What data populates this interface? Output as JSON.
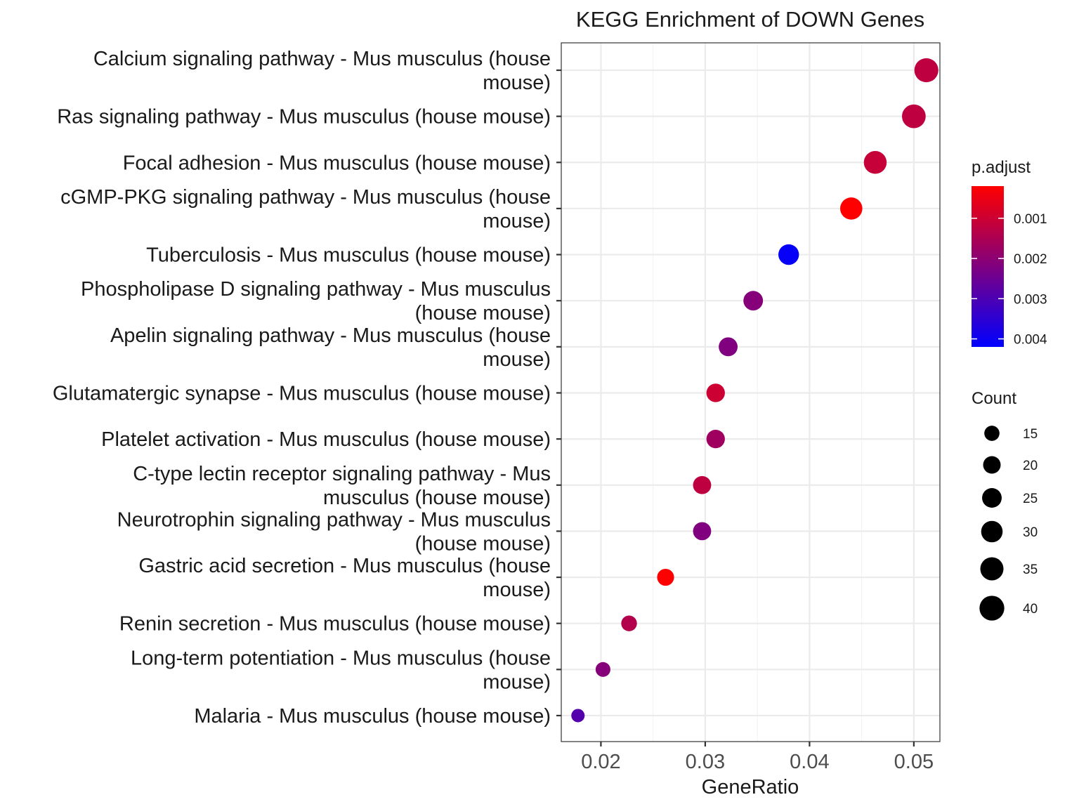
{
  "chart_data": {
    "type": "scatter",
    "title": "KEGG Enrichment of DOWN Genes",
    "xlabel": "GeneRatio",
    "ylabel": "",
    "xlim": [
      0.0162,
      0.0525
    ],
    "x_ticks": [
      0.02,
      0.03,
      0.04,
      0.05
    ],
    "x_tick_labels": [
      "0.02",
      "0.03",
      "0.04",
      "0.05"
    ],
    "grid": true,
    "categories": [
      [
        "Calcium signaling pathway - Mus musculus (house",
        "mouse)"
      ],
      [
        "Ras signaling pathway - Mus musculus (house mouse)"
      ],
      [
        "Focal adhesion - Mus musculus (house mouse)"
      ],
      [
        "cGMP-PKG signaling pathway - Mus musculus (house",
        "mouse)"
      ],
      [
        "Tuberculosis - Mus musculus (house mouse)"
      ],
      [
        "Phospholipase D signaling pathway - Mus musculus",
        "(house mouse)"
      ],
      [
        "Apelin signaling pathway - Mus musculus (house",
        "mouse)"
      ],
      [
        "Glutamatergic synapse - Mus musculus (house mouse)"
      ],
      [
        "Platelet activation - Mus musculus (house mouse)"
      ],
      [
        "C-type lectin receptor signaling pathway - Mus",
        "musculus (house mouse)"
      ],
      [
        "Neurotrophin signaling pathway - Mus musculus",
        "(house mouse)"
      ],
      [
        "Gastric acid secretion - Mus musculus (house",
        "mouse)"
      ],
      [
        "Renin secretion - Mus musculus (house mouse)"
      ],
      [
        "Long-term potentiation - Mus musculus (house",
        "mouse)"
      ],
      [
        "Malaria - Mus musculus (house mouse)"
      ]
    ],
    "points": [
      {
        "gene_ratio": 0.0512,
        "count": 42,
        "p_adjust": 0.0012
      },
      {
        "gene_ratio": 0.05,
        "count": 41,
        "p_adjust": 0.0012
      },
      {
        "gene_ratio": 0.0463,
        "count": 38,
        "p_adjust": 0.0011
      },
      {
        "gene_ratio": 0.044,
        "count": 36,
        "p_adjust": 0.0002
      },
      {
        "gene_ratio": 0.038,
        "count": 31,
        "p_adjust": 0.0041
      },
      {
        "gene_ratio": 0.0346,
        "count": 28,
        "p_adjust": 0.0021
      },
      {
        "gene_ratio": 0.0322,
        "count": 26,
        "p_adjust": 0.0022
      },
      {
        "gene_ratio": 0.031,
        "count": 25,
        "p_adjust": 0.001
      },
      {
        "gene_ratio": 0.031,
        "count": 25,
        "p_adjust": 0.0017
      },
      {
        "gene_ratio": 0.0297,
        "count": 24,
        "p_adjust": 0.0012
      },
      {
        "gene_ratio": 0.0297,
        "count": 24,
        "p_adjust": 0.0022
      },
      {
        "gene_ratio": 0.0262,
        "count": 21,
        "p_adjust": 0.0002
      },
      {
        "gene_ratio": 0.0227,
        "count": 18,
        "p_adjust": 0.0014
      },
      {
        "gene_ratio": 0.0202,
        "count": 16,
        "p_adjust": 0.0021
      },
      {
        "gene_ratio": 0.0178,
        "count": 13,
        "p_adjust": 0.0029
      }
    ],
    "color_legend": {
      "title": "p.adjust",
      "min": 0.0002,
      "max": 0.0042,
      "low_color": "#ff0000",
      "high_color": "#0000ff",
      "ticks": [
        0.001,
        0.002,
        0.003,
        0.004
      ],
      "tick_labels": [
        "0.001",
        "0.002",
        "0.003",
        "0.004"
      ]
    },
    "size_legend": {
      "title": "Count",
      "values": [
        15,
        20,
        25,
        30,
        35,
        40
      ],
      "labels": [
        "15",
        "20",
        "25",
        "30",
        "35",
        "40"
      ]
    },
    "legend_position": "right"
  }
}
